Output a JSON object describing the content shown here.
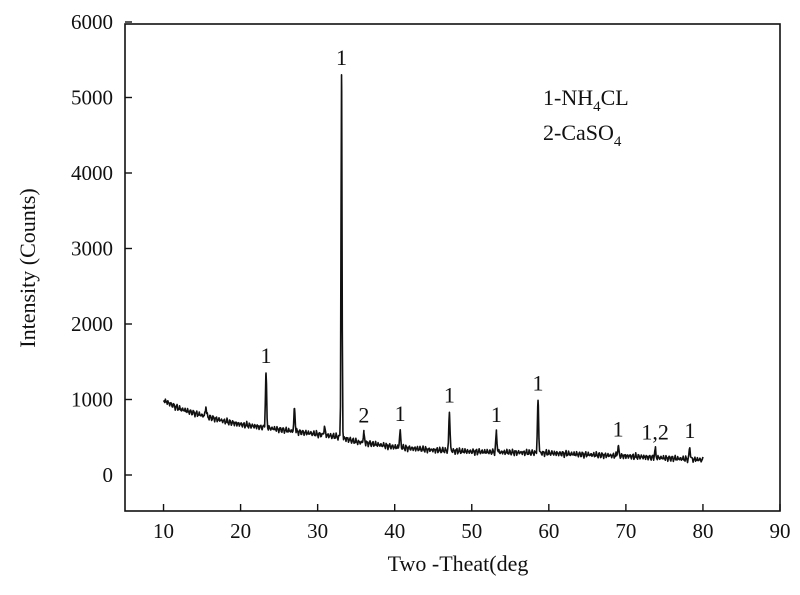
{
  "chart_data": {
    "type": "line",
    "title": "",
    "xlabel": "Two -Theat(deg",
    "ylabel": "Intensity (Counts)",
    "xlim": [
      5,
      90
    ],
    "ylim": [
      0,
      6000
    ],
    "grid": false,
    "x_ticks": [
      10,
      20,
      30,
      40,
      50,
      60,
      70,
      80,
      90
    ],
    "y_ticks": [
      0,
      1000,
      2000,
      3000,
      4000,
      5000,
      6000
    ],
    "legend": {
      "placement": "top-right",
      "entries": [
        {
          "prefix": "1-NH",
          "sub": "4",
          "suffix": "CL"
        },
        {
          "prefix": "2-CaSO",
          "sub": "4",
          "suffix": ""
        }
      ]
    },
    "peaks": [
      {
        "x": 15.5,
        "y": 900,
        "label": ""
      },
      {
        "x": 23.3,
        "y": 1350,
        "label": "1"
      },
      {
        "x": 27.0,
        "y": 880,
        "label": ""
      },
      {
        "x": 30.9,
        "y": 640,
        "label": ""
      },
      {
        "x": 33.1,
        "y": 5300,
        "label": "1"
      },
      {
        "x": 36.0,
        "y": 560,
        "label": "2"
      },
      {
        "x": 40.7,
        "y": 580,
        "label": "1"
      },
      {
        "x": 47.1,
        "y": 830,
        "label": "1"
      },
      {
        "x": 53.2,
        "y": 570,
        "label": "1"
      },
      {
        "x": 58.6,
        "y": 990,
        "label": "1"
      },
      {
        "x": 69.0,
        "y": 380,
        "label": "1"
      },
      {
        "x": 73.8,
        "y": 340,
        "label": "1,2"
      },
      {
        "x": 78.3,
        "y": 360,
        "label": "1"
      }
    ],
    "baseline": {
      "x": [
        10,
        12,
        15,
        18,
        20,
        23,
        26,
        30,
        33,
        35,
        38,
        40,
        45,
        50,
        55,
        60,
        65,
        70,
        75,
        80
      ],
      "y": [
        990,
        880,
        790,
        710,
        670,
        630,
        590,
        540,
        500,
        440,
        400,
        370,
        330,
        310,
        300,
        290,
        270,
        250,
        225,
        200
      ]
    }
  }
}
